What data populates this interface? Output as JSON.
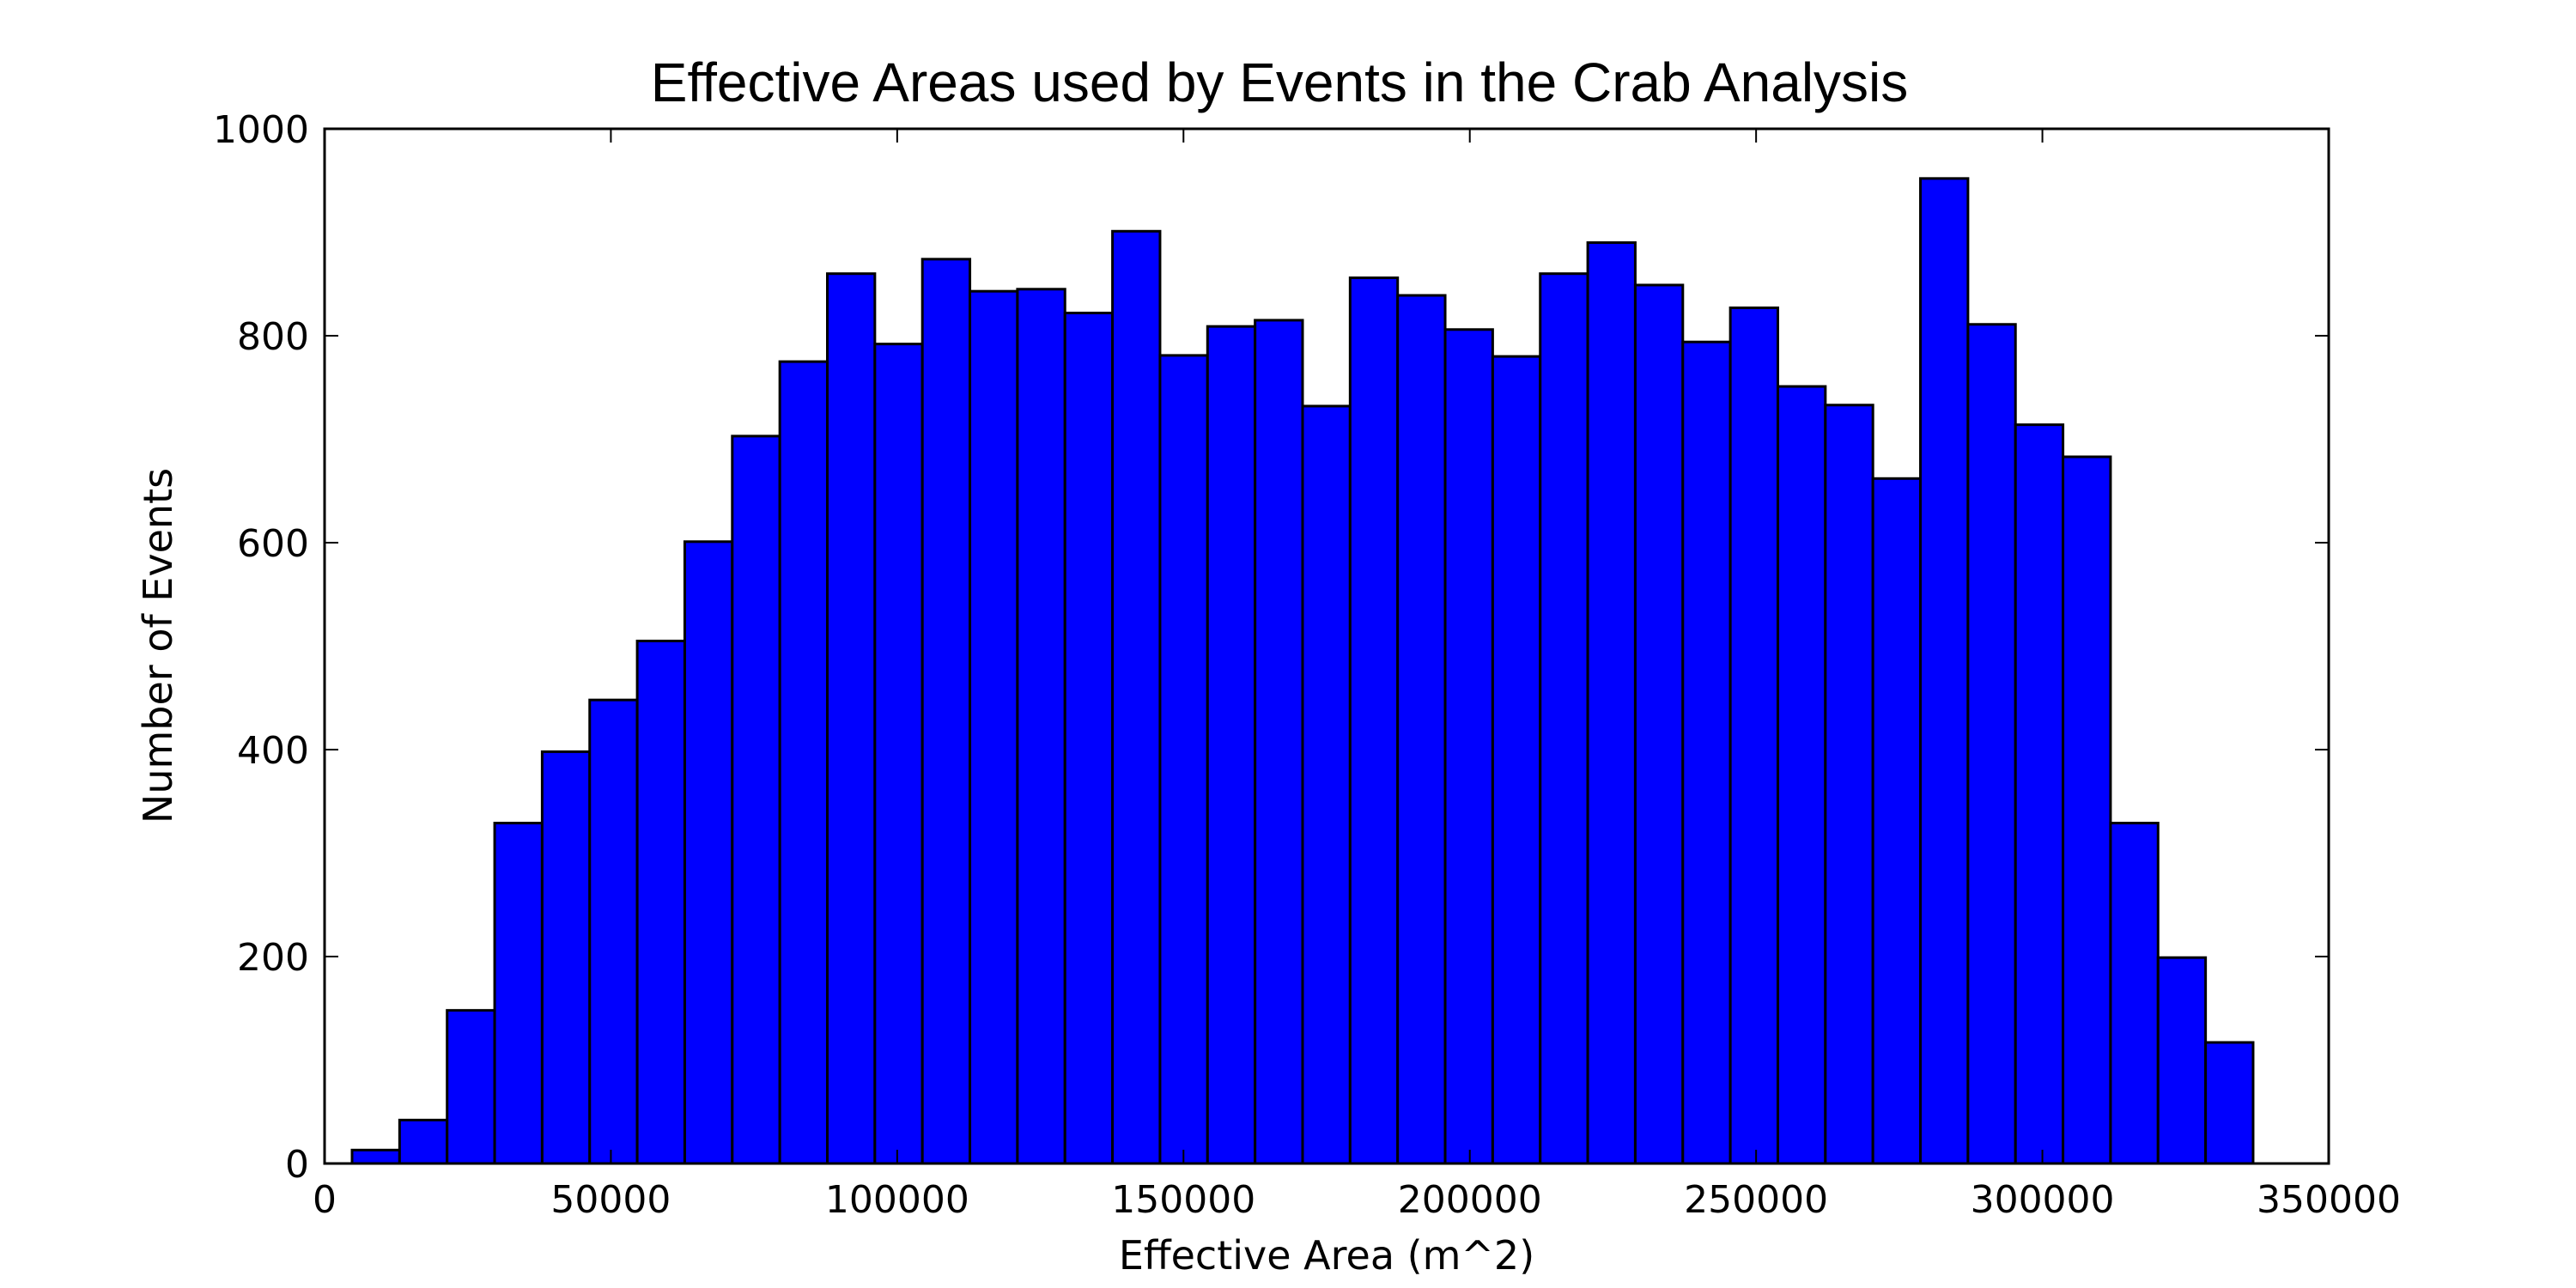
{
  "chart_data": {
    "type": "bar",
    "title": "Effective Areas used by Events in the Crab Analysis",
    "xlabel": "Effective Area (m^2)",
    "ylabel": "Number of Events",
    "xlim": [
      0,
      350000
    ],
    "ylim": [
      0,
      1000
    ],
    "xticks": [
      "0",
      "50000",
      "100000",
      "150000",
      "200000",
      "250000",
      "300000",
      "350000"
    ],
    "yticks": [
      "0",
      "200",
      "400",
      "600",
      "800",
      "1000"
    ],
    "grid": false,
    "bar_color": "#0000ff",
    "edge_color": "#000000",
    "bin_edges": [
      4800,
      13100,
      21400,
      29700,
      38000,
      46300,
      54600,
      62900,
      71200,
      79500,
      87800,
      96100,
      104400,
      112700,
      121000,
      129300,
      137600,
      145900,
      154200,
      162500,
      170800,
      179100,
      187400,
      195700,
      204000,
      212300,
      220600,
      228900,
      237200,
      245500,
      253800,
      262100,
      270400,
      278700,
      287000,
      295300,
      303600,
      311900,
      320200,
      328500,
      336800
    ],
    "values": [
      13,
      42,
      148,
      329,
      398,
      448,
      505,
      601,
      703,
      775,
      860,
      792,
      874,
      843,
      845,
      822,
      901,
      781,
      809,
      815,
      732,
      856,
      839,
      806,
      780,
      860,
      890,
      849,
      794,
      827,
      751,
      733,
      662,
      952,
      811,
      714,
      683,
      329,
      199,
      117
    ]
  }
}
